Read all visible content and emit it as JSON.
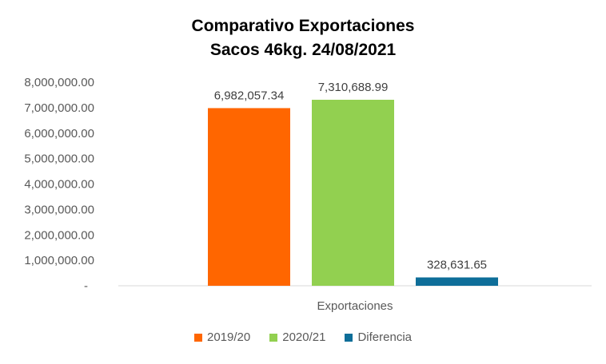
{
  "title_lines": [
    "Comparativo  Exportaciones",
    "Sacos 46kg. 24/08/2021"
  ],
  "chart_data": {
    "type": "bar",
    "title": "Comparativo  Exportaciones Sacos 46kg. 24/08/2021",
    "categories": [
      "Exportaciones"
    ],
    "series": [
      {
        "name": "2019/20",
        "values": [
          6982057.34
        ],
        "label": "6,982,057.34",
        "color": "#ff6600"
      },
      {
        "name": "2020/21",
        "values": [
          7310688.99
        ],
        "label": "7,310,688.99",
        "color": "#92d050"
      },
      {
        "name": "Diferencia",
        "values": [
          328631.65
        ],
        "label": "328,631.65",
        "color": "#0e6e99"
      }
    ],
    "ylim": [
      0,
      8000000
    ],
    "yticks": [
      "-",
      "1,000,000.00",
      "2,000,000.00",
      "3,000,000.00",
      "4,000,000.00",
      "5,000,000.00",
      "6,000,000.00",
      "7,000,000.00",
      "8,000,000.00"
    ],
    "grid": false,
    "legend_position": "bottom"
  }
}
